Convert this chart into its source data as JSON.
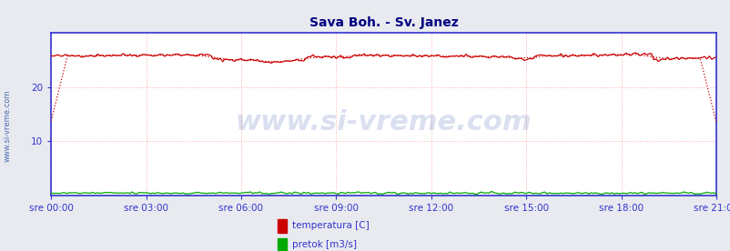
{
  "title": "Sava Boh. - Sv. Janez",
  "title_color": "#000080",
  "title_fontsize": 10,
  "fig_bg_color": "#e8eaf0",
  "plot_bg_color": "#ffffff",
  "ylim": [
    0,
    30
  ],
  "yticks": [
    10,
    20
  ],
  "xtick_labels": [
    "sre 00:00",
    "sre 03:00",
    "sre 06:00",
    "sre 09:00",
    "sre 12:00",
    "sre 15:00",
    "sre 18:00",
    "sre 21:00"
  ],
  "n_points": 288,
  "temp_color": "#cc0000",
  "pretok_color": "#00aa00",
  "grid_color": "#ffaaaa",
  "axis_color": "#3333cc",
  "tick_label_color": "#3333cc",
  "watermark_text": "www.si-vreme.com",
  "watermark_color": "#3355aa",
  "watermark_alpha": 0.18,
  "watermark_fontsize": 22,
  "legend_labels": [
    "temperatura [C]",
    "pretok [m3/s]"
  ],
  "legend_colors": [
    "#cc0000",
    "#00aa00"
  ],
  "side_text": "www.si-vreme.com",
  "side_text_color": "#3355aa",
  "side_text_fontsize": 6
}
